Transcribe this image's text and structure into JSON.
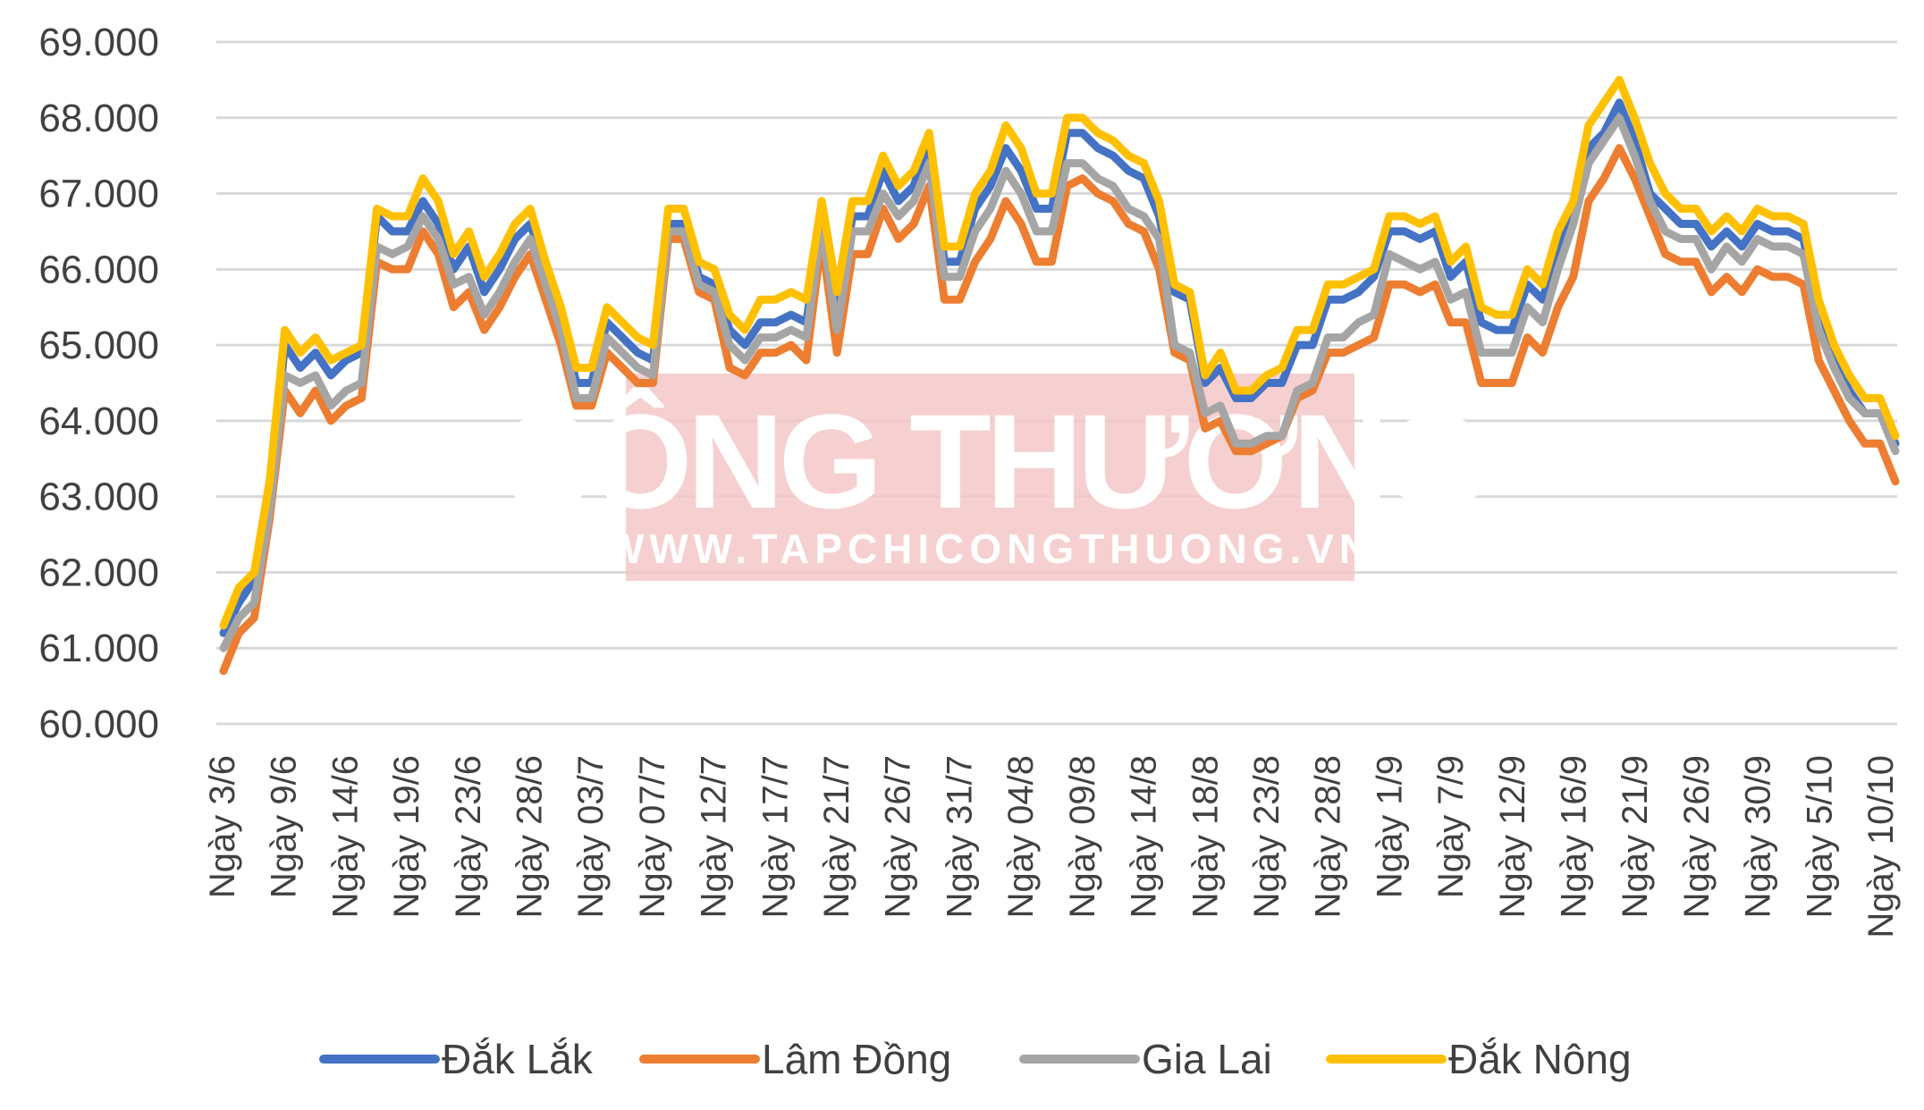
{
  "watermark": {
    "brand": "CÔNG THƯƠNG",
    "url": "WWW.TAPCHICONGTHUONG.VN"
  },
  "chart_data": {
    "type": "line",
    "title": "",
    "xlabel": "",
    "ylabel": "",
    "ylim": [
      60000,
      69000
    ],
    "ytick_labels": [
      "60.000",
      "61.000",
      "62.000",
      "63.000",
      "64.000",
      "65.000",
      "66.000",
      "67.000",
      "68.000",
      "69.000"
    ],
    "grid": "horizontal",
    "legend_position": "bottom",
    "x_tick_labels": [
      "Ngày 3/6",
      "Ngày 9/6",
      "Ngày 14/6",
      "Ngày 19/6",
      "Ngày 23/6",
      "Ngày 28/6",
      "Ngày 03/7",
      "Ngày 07/7",
      "Ngày 12/7",
      "Ngày 17/7",
      "Ngày 21/7",
      "Ngày 26/7",
      "Ngày 31/7",
      "Ngày 04/8",
      "Ngày 09/8",
      "Ngày 14/8",
      "Ngày 18/8",
      "Ngày 23/8",
      "Ngày 28/8",
      "Ngày 1/9",
      "Ngày 7/9",
      "Ngày 12/9",
      "Ngày 16/9",
      "Ngày 21/9",
      "Ngày 26/9",
      "Ngày 30/9",
      "Ngày 5/10",
      "Ngày 10/10"
    ],
    "series": [
      {
        "name": "Đắk Lắk",
        "color": "#4472c4",
        "values": [
          61200,
          61600,
          61900,
          63000,
          65000,
          64700,
          64900,
          64600,
          64800,
          64900,
          66700,
          66500,
          66500,
          66900,
          66600,
          66000,
          66300,
          65700,
          66000,
          66400,
          66600,
          66000,
          65400,
          64500,
          64500,
          65300,
          65100,
          64900,
          64800,
          66600,
          66600,
          65900,
          65800,
          65200,
          65000,
          65300,
          65300,
          65400,
          65300,
          66700,
          65400,
          66700,
          66700,
          67300,
          66900,
          67100,
          67700,
          66100,
          66100,
          66800,
          67100,
          67600,
          67300,
          66800,
          66800,
          67800,
          67800,
          67600,
          67500,
          67300,
          67200,
          66700,
          65700,
          65600,
          64500,
          64700,
          64300,
          64300,
          64500,
          64500,
          65000,
          65000,
          65600,
          65600,
          65700,
          65900,
          66500,
          66500,
          66400,
          66500,
          65900,
          66100,
          65300,
          65200,
          65200,
          65800,
          65600,
          66300,
          66700,
          67600,
          67800,
          68200,
          67700,
          67000,
          66800,
          66600,
          66600,
          66300,
          66500,
          66300,
          66600,
          66500,
          66500,
          66400,
          65400,
          64800,
          64400,
          64100,
          64100,
          63700
        ]
      },
      {
        "name": "Lâm Đồng",
        "color": "#ed7d31",
        "values": [
          60700,
          61200,
          61400,
          62700,
          64400,
          64100,
          64400,
          64000,
          64200,
          64300,
          66100,
          66000,
          66000,
          66500,
          66200,
          65500,
          65700,
          65200,
          65500,
          65900,
          66200,
          65600,
          65000,
          64200,
          64200,
          64900,
          64700,
          64500,
          64500,
          66400,
          66400,
          65700,
          65600,
          64700,
          64600,
          64900,
          64900,
          65000,
          64800,
          66400,
          64900,
          66200,
          66200,
          66800,
          66400,
          66600,
          67100,
          65600,
          65600,
          66100,
          66400,
          66900,
          66600,
          66100,
          66100,
          67100,
          67200,
          67000,
          66900,
          66600,
          66500,
          66000,
          64900,
          64800,
          63900,
          64000,
          63600,
          63600,
          63700,
          63800,
          64300,
          64400,
          64900,
          64900,
          65000,
          65100,
          65800,
          65800,
          65700,
          65800,
          65300,
          65300,
          64500,
          64500,
          64500,
          65100,
          64900,
          65500,
          65900,
          66900,
          67200,
          67600,
          67200,
          66700,
          66200,
          66100,
          66100,
          65700,
          65900,
          65700,
          66000,
          65900,
          65900,
          65800,
          64800,
          64400,
          64000,
          63700,
          63700,
          63200
        ]
      },
      {
        "name": "Gia Lai",
        "color": "#a5a5a5",
        "values": [
          61000,
          61400,
          61600,
          62800,
          64600,
          64500,
          64600,
          64200,
          64400,
          64500,
          66300,
          66200,
          66300,
          66700,
          66400,
          65800,
          65900,
          65400,
          65700,
          66100,
          66400,
          65800,
          65200,
          64300,
          64300,
          65100,
          64900,
          64700,
          64600,
          66500,
          66500,
          65800,
          65700,
          65000,
          64800,
          65100,
          65100,
          65200,
          65100,
          66600,
          65200,
          66500,
          66500,
          67000,
          66700,
          66900,
          67400,
          65900,
          65900,
          66500,
          66800,
          67300,
          67000,
          66500,
          66500,
          67400,
          67400,
          67200,
          67100,
          66800,
          66700,
          66400,
          65000,
          64900,
          64100,
          64200,
          63700,
          63700,
          63800,
          63800,
          64400,
          64500,
          65100,
          65100,
          65300,
          65400,
          66200,
          66100,
          66000,
          66100,
          65600,
          65700,
          64900,
          64900,
          64900,
          65500,
          65300,
          66000,
          66600,
          67400,
          67700,
          68000,
          67500,
          66900,
          66500,
          66400,
          66400,
          66000,
          66300,
          66100,
          66400,
          66300,
          66300,
          66200,
          65200,
          64700,
          64300,
          64100,
          64100,
          63600
        ]
      },
      {
        "name": "Đắk Nông",
        "color": "#ffc000",
        "values": [
          61300,
          61800,
          62000,
          63200,
          65200,
          64900,
          65100,
          64800,
          64900,
          65000,
          66800,
          66700,
          66700,
          67200,
          66900,
          66200,
          66500,
          65900,
          66200,
          66600,
          66800,
          66100,
          65500,
          64700,
          64700,
          65500,
          65300,
          65100,
          65000,
          66800,
          66800,
          66100,
          66000,
          65400,
          65200,
          65600,
          65600,
          65700,
          65600,
          66900,
          65700,
          66900,
          66900,
          67500,
          67100,
          67300,
          67800,
          66300,
          66300,
          67000,
          67300,
          67900,
          67600,
          67000,
          67000,
          68000,
          68000,
          67800,
          67700,
          67500,
          67400,
          66900,
          65800,
          65700,
          64600,
          64900,
          64400,
          64400,
          64600,
          64700,
          65200,
          65200,
          65800,
          65800,
          65900,
          66000,
          66700,
          66700,
          66600,
          66700,
          66100,
          66300,
          65500,
          65400,
          65400,
          66000,
          65800,
          66500,
          66900,
          67900,
          68200,
          68500,
          68000,
          67400,
          67000,
          66800,
          66800,
          66500,
          66700,
          66500,
          66800,
          66700,
          66700,
          66600,
          65600,
          65000,
          64600,
          64300,
          64300,
          63800
        ]
      }
    ]
  }
}
